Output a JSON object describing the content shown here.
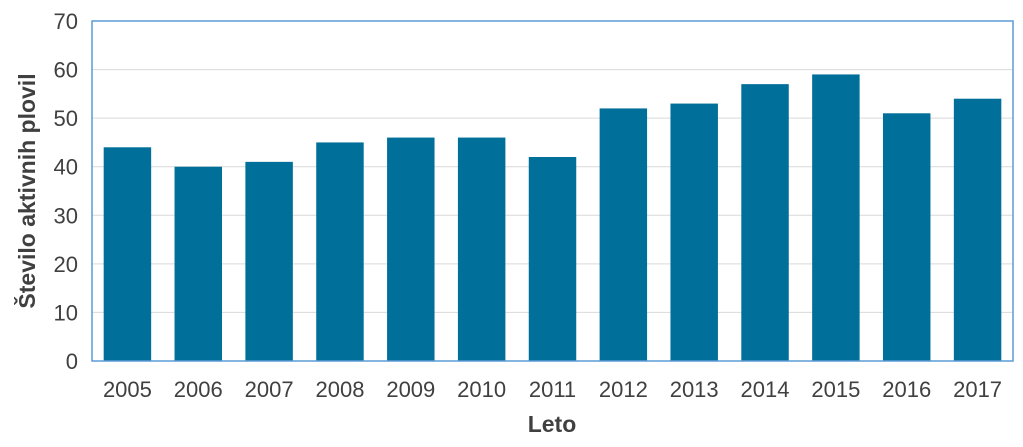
{
  "chart_data": {
    "type": "bar",
    "title": "",
    "xlabel": "Leto",
    "ylabel": "Število aktivnih plovil",
    "categories": [
      "2005",
      "2006",
      "2007",
      "2008",
      "2009",
      "2010",
      "2011",
      "2012",
      "2013",
      "2014",
      "2015",
      "2016",
      "2017"
    ],
    "values": [
      44,
      40,
      41,
      45,
      46,
      46,
      42,
      52,
      53,
      57,
      59,
      51,
      54
    ],
    "ylim": [
      0,
      70
    ],
    "yticks": [
      0,
      10,
      20,
      30,
      40,
      50,
      60,
      70
    ],
    "grid": true,
    "legend": "none",
    "bar_color": "#006f99",
    "grid_color": "#d9d9d9",
    "frame_color": "#5b9bd5"
  }
}
